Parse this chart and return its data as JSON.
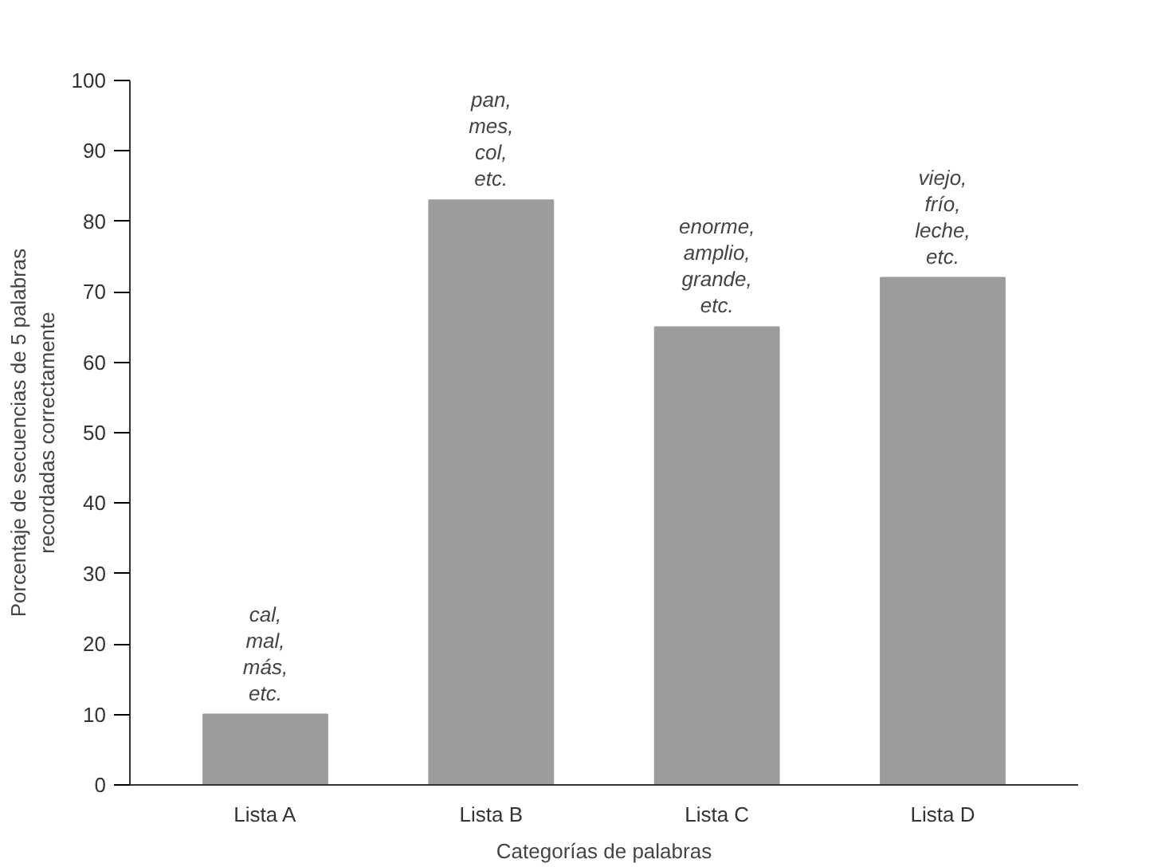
{
  "chart_data": {
    "type": "bar",
    "xlabel": "Categorías de palabras",
    "ylabel": "Porcentaje de secuencias de 5 palabras\nrecordadas correctamente",
    "categories": [
      "Lista A",
      "Lista B",
      "Lista C",
      "Lista D"
    ],
    "values": [
      10,
      83,
      65,
      72
    ],
    "color": "#9c9c9c",
    "ylim": [
      0,
      100
    ],
    "yticks": [
      0,
      10,
      20,
      30,
      40,
      50,
      60,
      70,
      80,
      90,
      100
    ],
    "grid": false,
    "annotations": [
      {
        "text": "cal,\nmal,\nmás,\netc.",
        "x": "Lista A",
        "y": 10
      },
      {
        "text": "pan,\nmes,\ncol,\netc.",
        "x": "Lista B",
        "y": 83
      },
      {
        "text": "enorme,\namplio,\ngrande,\netc.",
        "x": "Lista C",
        "y": 65
      },
      {
        "text": "viejo,\nfrío,\nleche,\netc.",
        "x": "Lista D",
        "y": 72
      }
    ]
  }
}
